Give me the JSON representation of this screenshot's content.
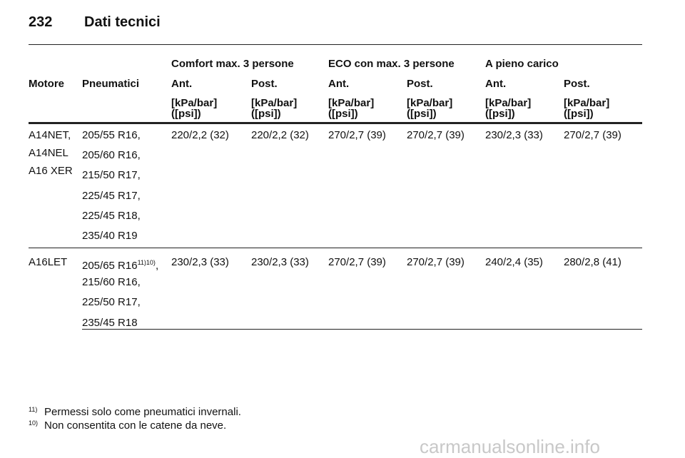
{
  "header": {
    "page_number": "232",
    "title": "Dati tecnici"
  },
  "table": {
    "group_headers": [
      "Comfort max. 3 persone",
      "ECO con max. 3 persone",
      "A pieno carico"
    ],
    "columns": [
      "Motore",
      "Pneumatici",
      "Ant.",
      "Post.",
      "Ant.",
      "Post.",
      "Ant.",
      "Post."
    ],
    "units": [
      {
        "line1": "[kPa/bar]",
        "line2": "([psi])"
      },
      {
        "line1": "[kPa/bar]",
        "line2": "([psi])"
      },
      {
        "line1": "[kPa/bar]",
        "line2": "([psi])"
      },
      {
        "line1": "[kPa/bar]",
        "line2": "([psi])"
      },
      {
        "line1": "[kPa/bar]",
        "line2": "([psi])"
      },
      {
        "line1": "[kPa/bar]",
        "line2": "([psi])"
      }
    ],
    "rows": [
      {
        "engines": [
          "A14NET,",
          "A14NEL",
          "A16 XER"
        ],
        "tires": [
          "205/55 R16,",
          "205/60 R16,",
          "215/50 R17,",
          "225/45 R17,",
          "225/45 R18,",
          "235/40 R19"
        ],
        "pressures": [
          "220/2,2 (32)",
          "220/2,2 (32)",
          "270/2,7 (39)",
          "270/2,7 (39)",
          "230/2,3 (33)",
          "270/2,7 (39)"
        ]
      },
      {
        "engines": [
          "A16LET"
        ],
        "tires": [
          {
            "text": "205/65 R16",
            "note": "11)10)",
            "suffix": ","
          },
          "215/60 R16,",
          "225/50 R17,",
          "235/45 R18"
        ],
        "pressures": [
          "230/2,3 (33)",
          "230/2,3 (33)",
          "270/2,7 (39)",
          "270/2,7 (39)",
          "240/2,4 (35)",
          "280/2,8 (41)"
        ]
      }
    ]
  },
  "footnotes": [
    {
      "mark": "11)",
      "text": "Permessi solo come pneumatici invernali."
    },
    {
      "mark": "10)",
      "text": "Non consentita con le catene da neve."
    }
  ],
  "watermark": "carmanualsonline.info"
}
